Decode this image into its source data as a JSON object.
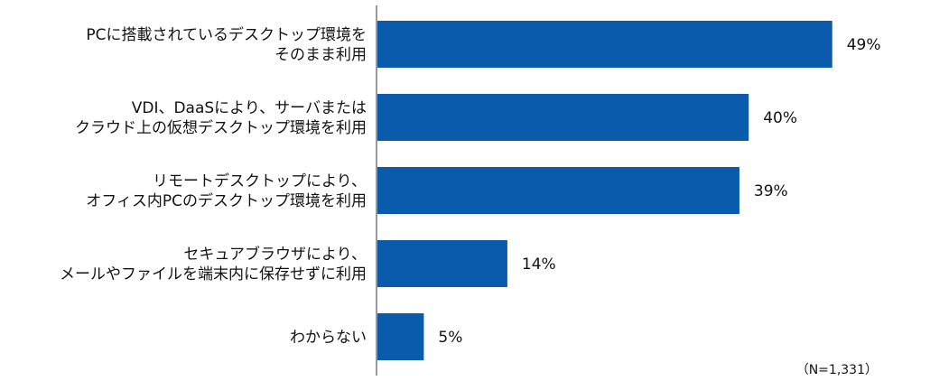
{
  "chart_data": {
    "type": "bar",
    "orientation": "horizontal",
    "categories": [
      [
        "PCに搭載されているデスクトップ環境を",
        "そのまま利用"
      ],
      [
        "VDI、DaaSにより、サーバまたは",
        "クラウド上の仮想デスクトップ環境を利用"
      ],
      [
        "リモートデスクトップにより、",
        "オフィス内PCのデスクトップ環境を利用"
      ],
      [
        "セキュアブラウザにより、",
        "メールやファイルを端末内に保存せずに利用"
      ],
      [
        "わからない"
      ]
    ],
    "values": [
      49,
      40,
      39,
      14,
      5
    ],
    "value_labels": [
      "49%",
      "40%",
      "39%",
      "14%",
      "5%"
    ],
    "unit": "%",
    "xlim": [
      0,
      50
    ],
    "grid": false,
    "legend": "none",
    "bar_color": "#0a5bab",
    "axis_color": "#999999",
    "note": "（N=1,331）"
  }
}
